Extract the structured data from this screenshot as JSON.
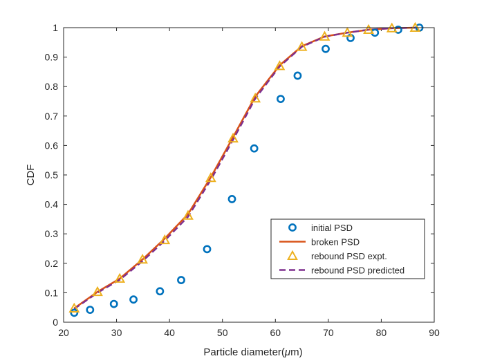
{
  "chart_data": {
    "type": "line",
    "title": "",
    "xlabel": "Particle diameter(",
    "xlabel_greek": "μ",
    "xlabel_unit": "m)",
    "ylabel": "CDF",
    "xlim": [
      20,
      90
    ],
    "ylim": [
      0,
      1
    ],
    "xticks": [
      "20",
      "30",
      "40",
      "50",
      "60",
      "70",
      "80",
      "90"
    ],
    "yticks": [
      "0",
      "0.1",
      "0.2",
      "0.3",
      "0.4",
      "0.5",
      "0.6",
      "0.7",
      "0.8",
      "0.9",
      "1"
    ],
    "grid": false,
    "legend_position": "lower-right",
    "series": [
      {
        "name": "initial PSD",
        "style": "circle-markers",
        "color": "#0072BD",
        "x": [
          22.0,
          25.0,
          29.5,
          33.2,
          38.2,
          42.2,
          47.1,
          51.8,
          56.0,
          61.0,
          64.2,
          69.5,
          74.2,
          78.8,
          83.2,
          87.2
        ],
        "y": [
          0.032,
          0.042,
          0.062,
          0.077,
          0.105,
          0.143,
          0.248,
          0.418,
          0.59,
          0.758,
          0.837,
          0.928,
          0.965,
          0.983,
          0.993,
          1.0
        ]
      },
      {
        "name": "broken PSD",
        "style": "solid-line",
        "color": "#D95319",
        "x": [
          22.0,
          26.4,
          30.6,
          34.9,
          39.1,
          43.5,
          47.8,
          52.0,
          56.2,
          60.8,
          65.0,
          69.3,
          73.6,
          77.6,
          82.0,
          86.4
        ],
        "y": [
          0.047,
          0.103,
          0.148,
          0.213,
          0.284,
          0.367,
          0.492,
          0.628,
          0.766,
          0.872,
          0.937,
          0.97,
          0.983,
          0.993,
          0.998,
          1.0
        ]
      },
      {
        "name": "rebound PSD expt.",
        "style": "triangle-markers",
        "color": "#EDB120",
        "x": [
          22.0,
          26.4,
          30.6,
          34.9,
          39.1,
          43.5,
          47.8,
          52.0,
          56.2,
          60.8,
          65.0,
          69.3,
          73.6,
          77.6,
          82.0,
          86.4
        ],
        "y": [
          0.047,
          0.103,
          0.148,
          0.213,
          0.279,
          0.362,
          0.49,
          0.624,
          0.76,
          0.87,
          0.935,
          0.97,
          0.983,
          0.993,
          0.998,
          1.0
        ]
      },
      {
        "name": "rebound PSD predicted",
        "style": "dashed-line",
        "color": "#7E2F8E",
        "x": [
          22.0,
          26.4,
          30.6,
          34.9,
          39.1,
          43.5,
          47.8,
          52.0,
          56.2,
          60.8,
          65.0,
          69.3,
          73.6,
          77.6,
          82.0,
          86.4
        ],
        "y": [
          0.045,
          0.1,
          0.144,
          0.207,
          0.277,
          0.358,
          0.483,
          0.619,
          0.759,
          0.868,
          0.935,
          0.969,
          0.983,
          0.993,
          0.998,
          1.0
        ]
      }
    ]
  }
}
